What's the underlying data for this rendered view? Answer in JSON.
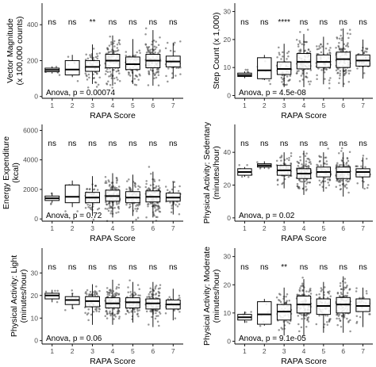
{
  "chart_data": [
    {
      "type": "box",
      "ylabel": [
        "Vector Magnitude",
        "(x 100,000 counts)"
      ],
      "xlabel": "RAPA Score",
      "categories": [
        "1",
        "2",
        "3",
        "4",
        "5",
        "6",
        "7"
      ],
      "ylim": [
        -10,
        520
      ],
      "yticks": [
        0,
        200,
        400
      ],
      "significance": [
        "ns",
        "ns",
        "**",
        "ns",
        "ns",
        "ns",
        "ns"
      ],
      "annotation": "Anova, p = 0.00074",
      "boxes": [
        {
          "q1": 138,
          "median": 148,
          "q3": 158,
          "whisker_low": 128,
          "whisker_high": 168,
          "n": 6,
          "spread": 20
        },
        {
          "q1": 120,
          "median": 150,
          "q3": 200,
          "whisker_low": 108,
          "whisker_high": 232,
          "n": 6,
          "spread": 55
        },
        {
          "q1": 140,
          "median": 165,
          "q3": 200,
          "whisker_low": 70,
          "whisker_high": 290,
          "n": 60,
          "spread": 50
        },
        {
          "q1": 160,
          "median": 200,
          "q3": 235,
          "whisker_low": 60,
          "whisker_high": 340,
          "n": 110,
          "spread": 60
        },
        {
          "q1": 150,
          "median": 180,
          "q3": 220,
          "whisker_low": 70,
          "whisker_high": 320,
          "n": 70,
          "spread": 55
        },
        {
          "q1": 160,
          "median": 200,
          "q3": 235,
          "whisker_low": 60,
          "whisker_high": 370,
          "n": 110,
          "spread": 60
        },
        {
          "q1": 165,
          "median": 195,
          "q3": 225,
          "whisker_low": 100,
          "whisker_high": 300,
          "n": 35,
          "spread": 45
        }
      ]
    },
    {
      "type": "box",
      "ylabel": [
        "Step Count (x 1,000)"
      ],
      "xlabel": "RAPA Score",
      "categories": [
        "1",
        "2",
        "3",
        "4",
        "5",
        "6",
        "7"
      ],
      "ylim": [
        -1,
        33
      ],
      "yticks": [
        0,
        10,
        20,
        30
      ],
      "significance": [
        "ns",
        "ns",
        "****",
        "ns",
        "ns",
        "ns",
        "ns"
      ],
      "annotation": "Anova, p = 4.5e-08",
      "boxes": [
        {
          "q1": 6.8,
          "median": 7.3,
          "q3": 8.0,
          "whisker_low": 6.2,
          "whisker_high": 8.6,
          "n": 6,
          "spread": 1.2
        },
        {
          "q1": 6.0,
          "median": 9.0,
          "q3": 13.5,
          "whisker_low": 5.5,
          "whisker_high": 14.5,
          "n": 6,
          "spread": 3.5
        },
        {
          "q1": 7.5,
          "median": 9.5,
          "q3": 12.0,
          "whisker_low": 3.0,
          "whisker_high": 18.5,
          "n": 60,
          "spread": 3.5
        },
        {
          "q1": 9.5,
          "median": 12.0,
          "q3": 15.0,
          "whisker_low": 3.0,
          "whisker_high": 22.0,
          "n": 110,
          "spread": 4.0
        },
        {
          "q1": 10.0,
          "median": 12.0,
          "q3": 14.5,
          "whisker_low": 4.0,
          "whisker_high": 21.0,
          "n": 70,
          "spread": 3.5
        },
        {
          "q1": 10.0,
          "median": 13.0,
          "q3": 15.5,
          "whisker_low": 3.0,
          "whisker_high": 24.0,
          "n": 110,
          "spread": 4.0
        },
        {
          "q1": 10.5,
          "median": 12.5,
          "q3": 14.5,
          "whisker_low": 6.0,
          "whisker_high": 20.0,
          "n": 35,
          "spread": 3.0
        }
      ]
    },
    {
      "type": "box",
      "ylabel": [
        "Energy Expenditure",
        "(kcal)"
      ],
      "xlabel": "RAPA Score",
      "categories": [
        "1",
        "2",
        "3",
        "4",
        "5",
        "6",
        "7"
      ],
      "ylim": [
        -150,
        6400
      ],
      "yticks": [
        0,
        2000,
        4000,
        6000
      ],
      "significance": [
        "ns",
        "ns",
        "ns",
        "ns",
        "ns",
        "ns",
        "ns"
      ],
      "annotation": "Anova, p = 0.72",
      "boxes": [
        {
          "q1": 1250,
          "median": 1400,
          "q3": 1550,
          "whisker_low": 1100,
          "whisker_high": 1700,
          "n": 6,
          "spread": 250
        },
        {
          "q1": 1100,
          "median": 1500,
          "q3": 2300,
          "whisker_low": 800,
          "whisker_high": 2600,
          "n": 6,
          "spread": 700
        },
        {
          "q1": 1100,
          "median": 1450,
          "q3": 1800,
          "whisker_low": 200,
          "whisker_high": 2900,
          "n": 60,
          "spread": 600
        },
        {
          "q1": 1200,
          "median": 1550,
          "q3": 1950,
          "whisker_low": 100,
          "whisker_high": 3100,
          "n": 110,
          "spread": 650
        },
        {
          "q1": 1100,
          "median": 1450,
          "q3": 1850,
          "whisker_low": 200,
          "whisker_high": 3000,
          "n": 70,
          "spread": 600
        },
        {
          "q1": 1150,
          "median": 1500,
          "q3": 1900,
          "whisker_low": 100,
          "whisker_high": 3200,
          "n": 110,
          "spread": 650
        },
        {
          "q1": 1200,
          "median": 1450,
          "q3": 1750,
          "whisker_low": 300,
          "whisker_high": 2500,
          "n": 35,
          "spread": 450
        }
      ]
    },
    {
      "type": "box",
      "ylabel": [
        "Physical Activity: Sedentary",
        "(minutes/hour)"
      ],
      "xlabel": "RAPA Score",
      "categories": [
        "1",
        "2",
        "3",
        "4",
        "5",
        "6",
        "7"
      ],
      "ylim": [
        -2,
        57
      ],
      "yticks": [
        0,
        20,
        40
      ],
      "significance": [
        "ns",
        "ns",
        "ns",
        "ns",
        "ns",
        "ns",
        "ns"
      ],
      "annotation": "Anova, p = 0.02",
      "boxes": [
        {
          "q1": 26,
          "median": 28,
          "q3": 30,
          "whisker_low": 25,
          "whisker_high": 31,
          "n": 6,
          "spread": 2.5
        },
        {
          "q1": 31,
          "median": 32,
          "q3": 33,
          "whisker_low": 30,
          "whisker_high": 34.5,
          "n": 6,
          "spread": 1.5
        },
        {
          "q1": 26,
          "median": 29,
          "q3": 32,
          "whisker_low": 18,
          "whisker_high": 40,
          "n": 60,
          "spread": 4.5
        },
        {
          "q1": 24,
          "median": 27,
          "q3": 30,
          "whisker_low": 14,
          "whisker_high": 41,
          "n": 110,
          "spread": 5.0
        },
        {
          "q1": 25,
          "median": 28,
          "q3": 31,
          "whisker_low": 16,
          "whisker_high": 40,
          "n": 70,
          "spread": 4.5
        },
        {
          "q1": 24,
          "median": 28,
          "q3": 31,
          "whisker_low": 13,
          "whisker_high": 40,
          "n": 110,
          "spread": 5.0
        },
        {
          "q1": 25,
          "median": 28,
          "q3": 30,
          "whisker_low": 18,
          "whisker_high": 37,
          "n": 35,
          "spread": 3.5
        }
      ]
    },
    {
      "type": "box",
      "ylabel": [
        "Physical Activity: Light",
        "(minutes/hour)"
      ],
      "xlabel": "RAPA Score",
      "categories": [
        "1",
        "2",
        "3",
        "4",
        "5",
        "6",
        "7"
      ],
      "ylim": [
        -1.5,
        41
      ],
      "yticks": [
        0,
        10,
        20,
        30
      ],
      "significance": [
        "ns",
        "ns",
        "ns",
        "ns",
        "ns",
        "ns",
        "ns"
      ],
      "annotation": "Anova, p = 0.06",
      "boxes": [
        {
          "q1": 18.5,
          "median": 20,
          "q3": 21,
          "whisker_low": 17,
          "whisker_high": 22.5,
          "n": 6,
          "spread": 2.0
        },
        {
          "q1": 16,
          "median": 18,
          "q3": 19.5,
          "whisker_low": 14,
          "whisker_high": 21,
          "n": 6,
          "spread": 2.5
        },
        {
          "q1": 15,
          "median": 17.5,
          "q3": 19.5,
          "whisker_low": 7,
          "whisker_high": 25,
          "n": 60,
          "spread": 3.5
        },
        {
          "q1": 14.5,
          "median": 16.5,
          "q3": 19,
          "whisker_low": 7,
          "whisker_high": 27,
          "n": 110,
          "spread": 3.5
        },
        {
          "q1": 14.5,
          "median": 17,
          "q3": 19,
          "whisker_low": 8,
          "whisker_high": 26,
          "n": 70,
          "spread": 3.5
        },
        {
          "q1": 14,
          "median": 16.5,
          "q3": 18.5,
          "whisker_low": 6,
          "whisker_high": 26,
          "n": 110,
          "spread": 3.5
        },
        {
          "q1": 14,
          "median": 16,
          "q3": 18,
          "whisker_low": 9,
          "whisker_high": 23,
          "n": 35,
          "spread": 3.0
        }
      ]
    },
    {
      "type": "box",
      "ylabel": [
        "Physical Activity: Moderate",
        "(minutes/hour)"
      ],
      "xlabel": "RAPA Score",
      "categories": [
        "1",
        "2",
        "3",
        "4",
        "5",
        "6",
        "7"
      ],
      "ylim": [
        -1,
        33
      ],
      "yticks": [
        0,
        10,
        20,
        30
      ],
      "significance": [
        "ns",
        "ns",
        "**",
        "ns",
        "ns",
        "ns",
        "ns"
      ],
      "annotation": "Anova, p = 9.1e-05",
      "boxes": [
        {
          "q1": 7.5,
          "median": 8.5,
          "q3": 9.5,
          "whisker_low": 6.5,
          "whisker_high": 10.5,
          "n": 6,
          "spread": 1.5
        },
        {
          "q1": 6.0,
          "median": 9.5,
          "q3": 14.0,
          "whisker_low": 5.5,
          "whisker_high": 15.0,
          "n": 6,
          "spread": 3.5
        },
        {
          "q1": 7.5,
          "median": 10.5,
          "q3": 13.0,
          "whisker_low": 2.0,
          "whisker_high": 19.0,
          "n": 60,
          "spread": 3.5
        },
        {
          "q1": 10.0,
          "median": 13.0,
          "q3": 16.0,
          "whisker_low": 2.0,
          "whisker_high": 22.0,
          "n": 110,
          "spread": 4.0
        },
        {
          "q1": 9.5,
          "median": 12.5,
          "q3": 15.0,
          "whisker_low": 3.0,
          "whisker_high": 21.0,
          "n": 70,
          "spread": 3.5
        },
        {
          "q1": 10.0,
          "median": 13.0,
          "q3": 15.5,
          "whisker_low": 3.0,
          "whisker_high": 23.0,
          "n": 110,
          "spread": 4.0
        },
        {
          "q1": 10.5,
          "median": 12.5,
          "q3": 15.0,
          "whisker_low": 5.0,
          "whisker_high": 19.0,
          "n": 35,
          "spread": 3.0
        }
      ]
    }
  ]
}
